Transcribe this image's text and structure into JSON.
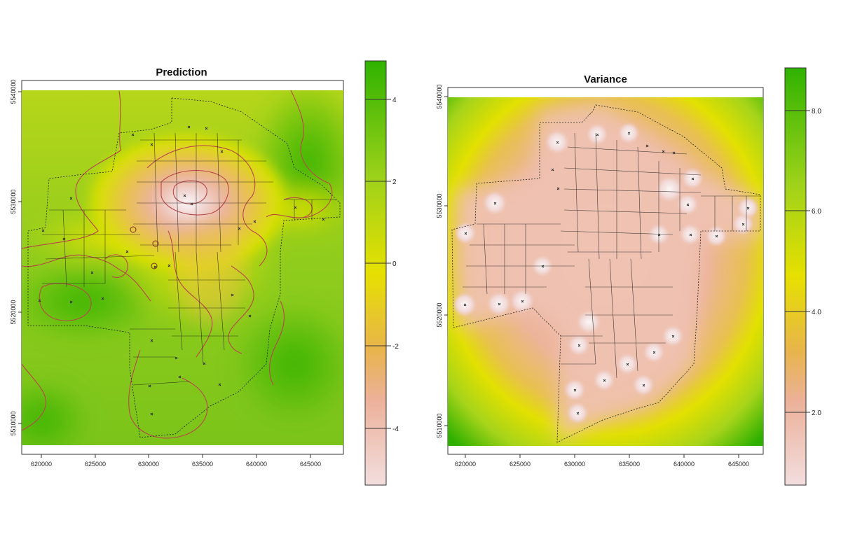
{
  "panels": [
    {
      "id": "prediction",
      "title": "Prediction",
      "x_ticks": [
        "620000",
        "625000",
        "630000",
        "635000",
        "640000",
        "645000"
      ],
      "y_ticks": [
        "5510000",
        "5520000",
        "5530000",
        "5540000"
      ],
      "colorbar": {
        "ticks": [
          "4",
          "2",
          "0",
          "-2",
          "-4"
        ],
        "range": [
          -5.3,
          5.0
        ],
        "colors": [
          "#f2dede",
          "#ecb19a",
          "#e8b44c",
          "#e6e000",
          "#9fd21a",
          "#2fb300"
        ]
      }
    },
    {
      "id": "variance",
      "title": "Variance",
      "x_ticks": [
        "620000",
        "625000",
        "630000",
        "635000",
        "640000",
        "645000"
      ],
      "y_ticks": [
        "5510000",
        "5520000",
        "5530000",
        "5540000"
      ],
      "colorbar": {
        "ticks": [
          "8.0",
          "6.0",
          "4.0",
          "2.0"
        ],
        "range": [
          0.3,
          8.9
        ],
        "colors": [
          "#f2dede",
          "#ecb19a",
          "#e8b44c",
          "#e6e000",
          "#9fd21a",
          "#2fb300"
        ]
      }
    }
  ],
  "colors": {
    "boundary": "#222222",
    "contour": "#b8474a",
    "points": "#333333"
  }
}
